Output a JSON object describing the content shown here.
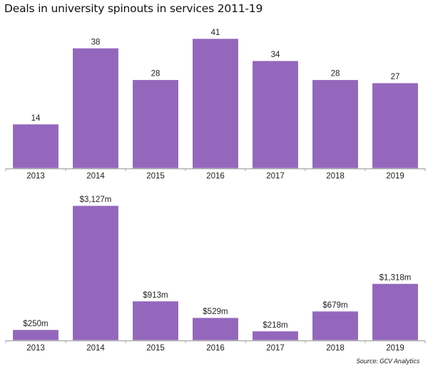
{
  "title": "Deals in university spinouts in services 2011-19",
  "source": "Source: GCV Analytics",
  "colors": {
    "bar": "#9467bd",
    "bar_edge": "#ffffff",
    "axis": "#a6a6a6",
    "text": "#222222"
  },
  "chart_data": [
    {
      "type": "bar",
      "title": "",
      "xlabel": "",
      "ylabel": "",
      "categories": [
        "2013",
        "2014",
        "2015",
        "2016",
        "2017",
        "2018",
        "2019"
      ],
      "values": [
        14,
        38,
        28,
        41,
        34,
        28,
        27
      ],
      "labels": [
        "14",
        "38",
        "28",
        "41",
        "34",
        "28",
        "27"
      ],
      "ylim": [
        0,
        41
      ],
      "grid": false,
      "legend": "none"
    },
    {
      "type": "bar",
      "title": "",
      "xlabel": "",
      "ylabel": "",
      "unit": "$m",
      "categories": [
        "2013",
        "2014",
        "2015",
        "2016",
        "2017",
        "2018",
        "2019"
      ],
      "values": [
        250,
        3127,
        913,
        529,
        218,
        679,
        1318
      ],
      "labels": [
        "$250m",
        "$3,127m",
        "$913m",
        "$529m",
        "$218m",
        "$679m",
        "$1,318m"
      ],
      "ylim": [
        0,
        3127
      ],
      "grid": false,
      "legend": "none"
    }
  ]
}
